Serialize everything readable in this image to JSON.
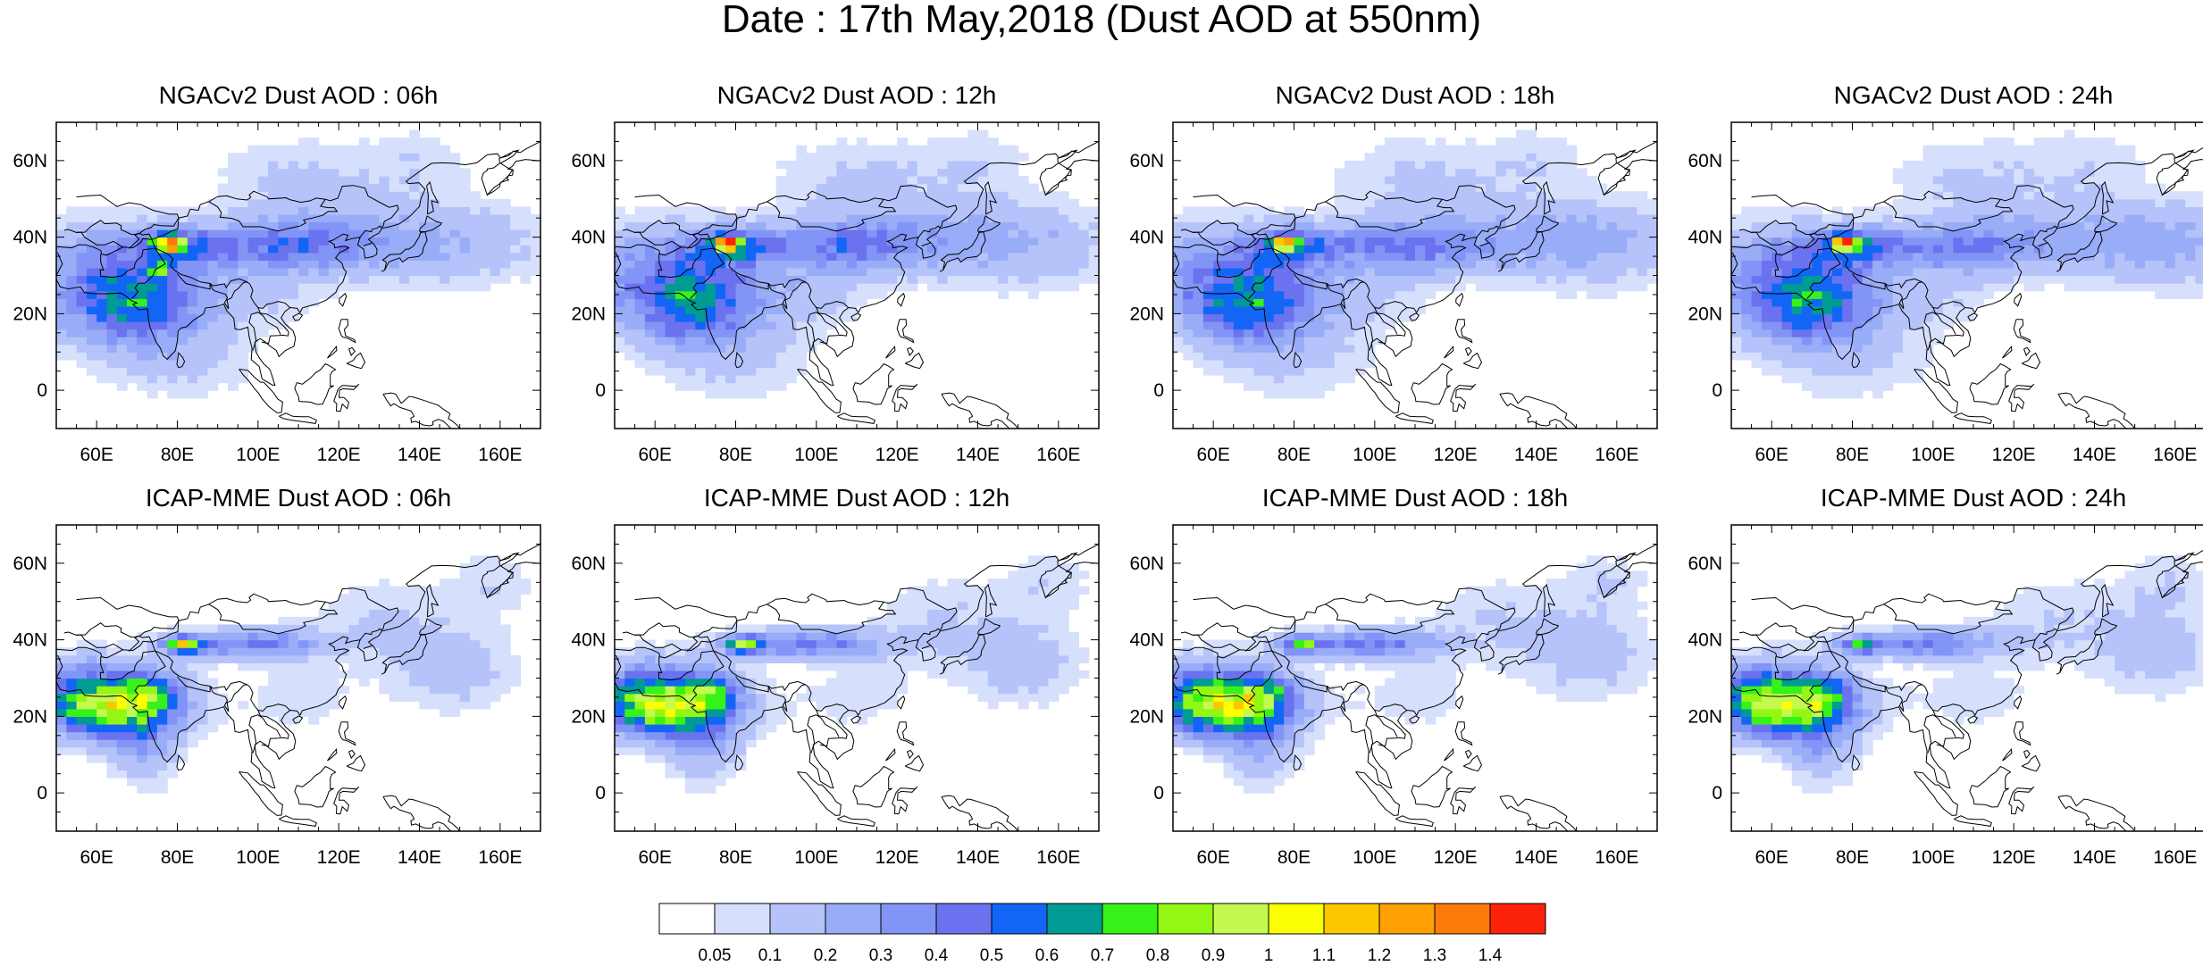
{
  "title": "Date : 17th May,2018 (Dust AOD at 550nm)",
  "map": {
    "lon_range": [
      50,
      170
    ],
    "lat_range": [
      -10,
      70
    ],
    "lon_ticks": [
      60,
      80,
      100,
      120,
      140,
      160
    ],
    "lat_ticks": [
      0,
      20,
      40,
      60
    ],
    "lon_tick_labels": [
      "60E",
      "80E",
      "100E",
      "120E",
      "140E",
      "160E"
    ],
    "lat_tick_labels": [
      "0",
      "20N",
      "40N",
      "60N"
    ]
  },
  "panels": [
    {
      "title": "NGACv2 Dust AOD : 06h",
      "model": "NGACv2",
      "hour": 6
    },
    {
      "title": "NGACv2 Dust AOD : 12h",
      "model": "NGACv2",
      "hour": 12
    },
    {
      "title": "NGACv2 Dust AOD : 18h",
      "model": "NGACv2",
      "hour": 18
    },
    {
      "title": "NGACv2 Dust AOD : 24h",
      "model": "NGACv2",
      "hour": 24
    },
    {
      "title": "ICAP-MME Dust AOD : 06h",
      "model": "ICAP-MME",
      "hour": 6
    },
    {
      "title": "ICAP-MME Dust AOD : 12h",
      "model": "ICAP-MME",
      "hour": 12
    },
    {
      "title": "ICAP-MME Dust AOD : 18h",
      "model": "ICAP-MME",
      "hour": 18
    },
    {
      "title": "ICAP-MME Dust AOD : 24h",
      "model": "ICAP-MME",
      "hour": 24
    }
  ],
  "colorbar": {
    "levels": [
      "0.05",
      "0.1",
      "0.2",
      "0.3",
      "0.4",
      "0.5",
      "0.6",
      "0.7",
      "0.8",
      "0.9",
      "1",
      "1.1",
      "1.2",
      "1.3",
      "1.4"
    ],
    "colors": [
      "#ffffff",
      "#d6dffc",
      "#b5c3fa",
      "#98acf8",
      "#8294f5",
      "#6b72f0",
      "#1366f5",
      "#009b93",
      "#37f219",
      "#92f714",
      "#c4f94f",
      "#fcfe03",
      "#fdc700",
      "#fea003",
      "#fd7a0b",
      "#fd220a"
    ]
  }
}
